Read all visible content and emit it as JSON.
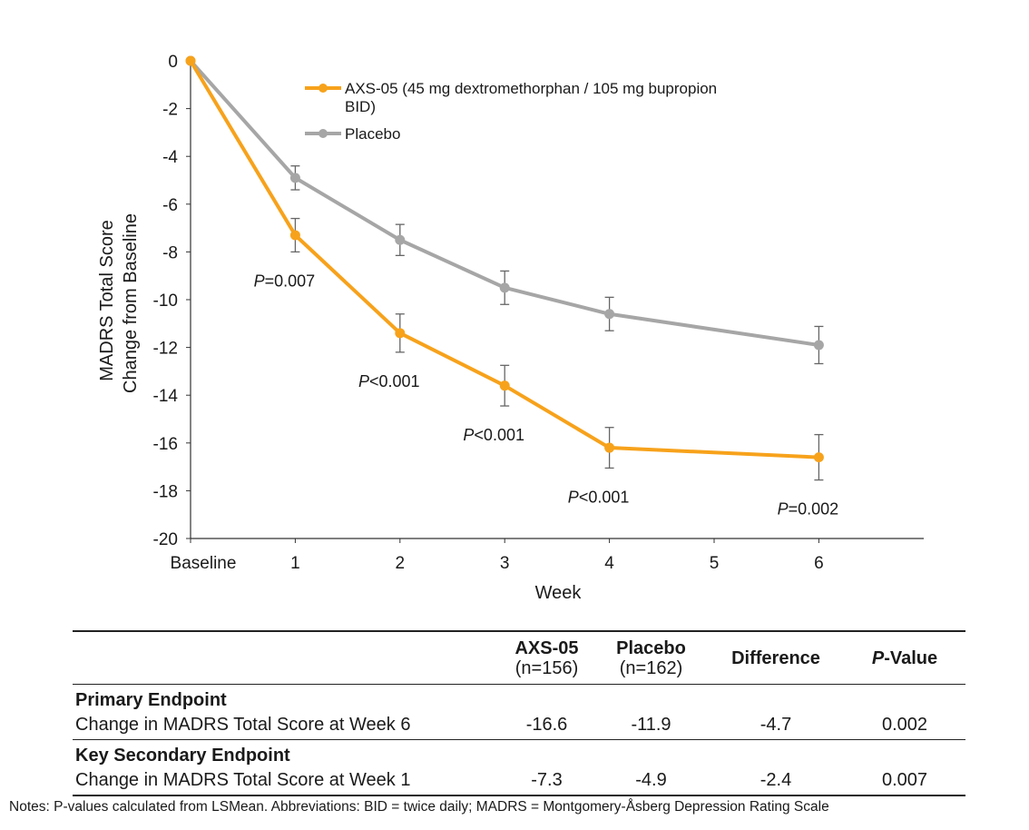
{
  "chart_data": {
    "type": "line",
    "title": "",
    "xlabel": "Week",
    "ylabel_line1": "MADRS Total Score",
    "ylabel_line2": "Change from Baseline",
    "categories": [
      "Baseline",
      "1",
      "2",
      "3",
      "4",
      "5",
      "6"
    ],
    "x": [
      0,
      1,
      2,
      3,
      4,
      5,
      6
    ],
    "ylim": [
      -20,
      0
    ],
    "yticks": [
      0,
      -2,
      -4,
      -6,
      -8,
      -10,
      -12,
      -14,
      -16,
      -18,
      -20
    ],
    "grid": false,
    "legend_position": "top",
    "series": [
      {
        "name": "AXS-05 (45 mg dextromethorphan / 105 mg bupropion BID)",
        "name_line1": "AXS-05 (45 mg dextromethorphan / 105 mg bupropion",
        "name_line2": "BID)",
        "color": "#F7A21B",
        "x": [
          0,
          1,
          2,
          3,
          4,
          6
        ],
        "values": [
          0,
          -7.3,
          -11.4,
          -13.6,
          -16.2,
          -16.6
        ],
        "error": [
          0,
          0.7,
          0.8,
          0.85,
          0.85,
          0.95
        ]
      },
      {
        "name": "Placebo",
        "color": "#A6A6A6",
        "x": [
          0,
          1,
          2,
          3,
          4,
          6
        ],
        "values": [
          0,
          -4.9,
          -7.5,
          -9.5,
          -10.6,
          -11.9
        ],
        "error": [
          0,
          0.5,
          0.65,
          0.7,
          0.7,
          0.78
        ]
      }
    ],
    "annotations": [
      {
        "italic": "P",
        "rest": "=0.007",
        "week": 1
      },
      {
        "italic": "P",
        "rest": "<0.001",
        "week": 2
      },
      {
        "italic": "P",
        "rest": "<0.001",
        "week": 3
      },
      {
        "italic": "P",
        "rest": "<0.001",
        "week": 4
      },
      {
        "italic": "P",
        "rest": "=0.002",
        "week": 6
      }
    ]
  },
  "table": {
    "headers": {
      "axs05": "AXS-05",
      "axs05_n": "(n=156)",
      "placebo": "Placebo",
      "placebo_n": "(n=162)",
      "difference": "Difference",
      "pvalue_italic": "P",
      "pvalue_rest": "-Value"
    },
    "sections": [
      {
        "title": "Primary Endpoint",
        "label": "Change in MADRS Total Score at Week 6",
        "axs05": "-16.6",
        "placebo": "-11.9",
        "difference": "-4.7",
        "pvalue": "0.002"
      },
      {
        "title": "Key Secondary Endpoint",
        "label": "Change in MADRS Total Score at Week 1",
        "axs05": "-7.3",
        "placebo": "-4.9",
        "difference": "-2.4",
        "pvalue": "0.007"
      }
    ]
  },
  "footnote": "Notes: P-values calculated from LSMean.  Abbreviations: BID = twice daily; MADRS = Montgomery-Åsberg Depression Rating Scale"
}
